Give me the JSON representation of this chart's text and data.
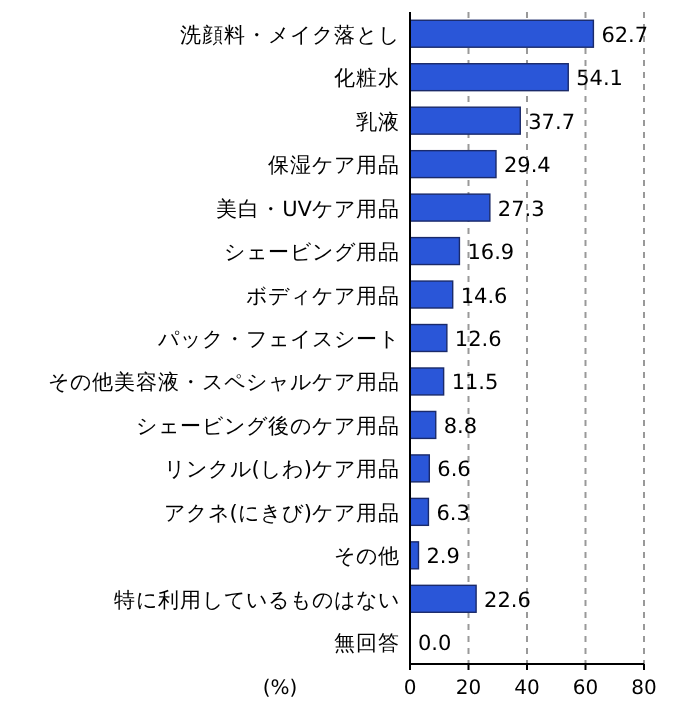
{
  "chart_data": {
    "type": "bar",
    "orientation": "horizontal",
    "xlabel": "(%)",
    "categories": [
      "洗顔料・メイク落とし",
      "化粧水",
      "乳液",
      "保湿ケア用品",
      "美白・UVケア用品",
      "シェービング用品",
      "ボディケア用品",
      "パック・フェイスシート",
      "その他美容液・スペシャルケア用品",
      "シェービング後のケア用品",
      "リンクル(しわ)ケア用品",
      "アクネ(にきび)ケア用品",
      "その他",
      "特に利用しているものはない",
      "無回答"
    ],
    "values": [
      62.7,
      54.1,
      37.7,
      29.4,
      27.3,
      16.9,
      14.6,
      12.6,
      11.5,
      8.8,
      6.6,
      6.3,
      2.9,
      22.6,
      0.0
    ],
    "value_labels": [
      "62.7",
      "54.1",
      "37.7",
      "29.4",
      "27.3",
      "16.9",
      "14.6",
      "12.6",
      "11.5",
      "8.8",
      "6.6",
      "6.3",
      "2.9",
      "22.6",
      "0.0"
    ],
    "color": "#2a56d8",
    "xlim": [
      0,
      80
    ],
    "xticks": [
      0,
      20,
      40,
      60,
      80
    ],
    "grid": "x"
  }
}
